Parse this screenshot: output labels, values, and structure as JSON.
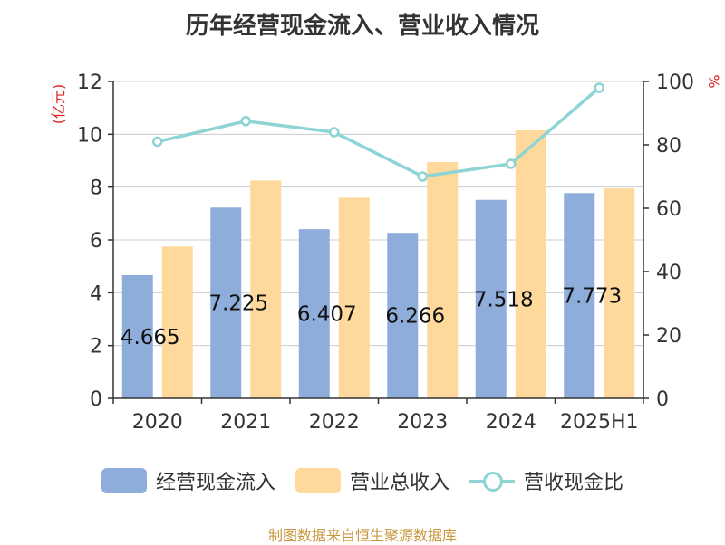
{
  "chart_data": {
    "type": "bar",
    "title": "历年经营现金流入、营业收入情况",
    "categories": [
      "2020",
      "2021",
      "2022",
      "2023",
      "2024",
      "2025H1"
    ],
    "series": [
      {
        "name": "经营现金流入",
        "type": "bar",
        "axis": "left",
        "color": "#8eaddb",
        "values": [
          4.665,
          7.225,
          6.407,
          6.266,
          7.518,
          7.773
        ],
        "labels": [
          "4.665",
          "7.225",
          "6.407",
          "6.266",
          "7.518",
          "7.773"
        ]
      },
      {
        "name": "营业总收入",
        "type": "bar",
        "axis": "left",
        "color": "#fed99b",
        "values": [
          5.75,
          8.25,
          7.6,
          8.95,
          10.15,
          7.95
        ]
      },
      {
        "name": "营收现金比",
        "type": "line",
        "axis": "right",
        "color": "#8ed4d4",
        "values": [
          81,
          87.5,
          84,
          70,
          74,
          98
        ]
      }
    ],
    "y_left": {
      "unit": "(亿元)",
      "min": 0,
      "max": 12,
      "ticks": [
        "0",
        "2",
        "4",
        "6",
        "8",
        "10",
        "12"
      ]
    },
    "y_right": {
      "unit": "%",
      "min": 0,
      "max": 100,
      "ticks": [
        "0",
        "20",
        "40",
        "60",
        "80",
        "100"
      ]
    },
    "grid": true,
    "legend_position": "bottom",
    "source": "制图数据来自恒生聚源数据库"
  }
}
